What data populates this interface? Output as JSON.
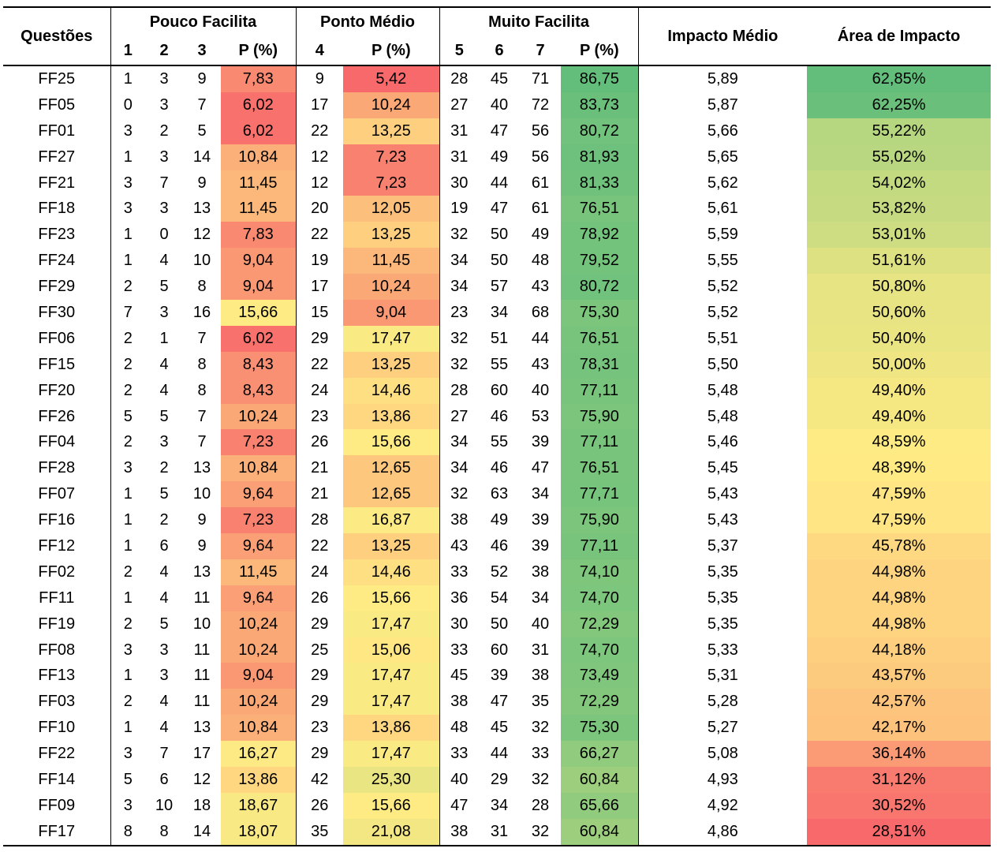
{
  "table": {
    "groups": [
      "Questões",
      "Pouco Facilita",
      "Ponto Médio",
      "Muito Facilita",
      "Impacto Médio",
      "Área de Impacto"
    ],
    "subheaders": [
      "1",
      "2",
      "3",
      "P (%)",
      "4",
      "P (%)",
      "5",
      "6",
      "7",
      "P (%)"
    ],
    "rows": [
      [
        "FF25",
        "1",
        "3",
        "9",
        "7,83",
        "9",
        "5,42",
        "28",
        "45",
        "71",
        "86,75",
        "5,89",
        "62,85%"
      ],
      [
        "FF05",
        "0",
        "3",
        "7",
        "6,02",
        "17",
        "10,24",
        "27",
        "40",
        "72",
        "83,73",
        "5,87",
        "62,25%"
      ],
      [
        "FF01",
        "3",
        "2",
        "5",
        "6,02",
        "22",
        "13,25",
        "31",
        "47",
        "56",
        "80,72",
        "5,66",
        "55,22%"
      ],
      [
        "FF27",
        "1",
        "3",
        "14",
        "10,84",
        "12",
        "7,23",
        "31",
        "49",
        "56",
        "81,93",
        "5,65",
        "55,02%"
      ],
      [
        "FF21",
        "3",
        "7",
        "9",
        "11,45",
        "12",
        "7,23",
        "30",
        "44",
        "61",
        "81,33",
        "5,62",
        "54,02%"
      ],
      [
        "FF18",
        "3",
        "3",
        "13",
        "11,45",
        "20",
        "12,05",
        "19",
        "47",
        "61",
        "76,51",
        "5,61",
        "53,82%"
      ],
      [
        "FF23",
        "1",
        "0",
        "12",
        "7,83",
        "22",
        "13,25",
        "32",
        "50",
        "49",
        "78,92",
        "5,59",
        "53,01%"
      ],
      [
        "FF24",
        "1",
        "4",
        "10",
        "9,04",
        "19",
        "11,45",
        "34",
        "50",
        "48",
        "79,52",
        "5,55",
        "51,61%"
      ],
      [
        "FF29",
        "2",
        "5",
        "8",
        "9,04",
        "17",
        "10,24",
        "34",
        "57",
        "43",
        "80,72",
        "5,52",
        "50,80%"
      ],
      [
        "FF30",
        "7",
        "3",
        "16",
        "15,66",
        "15",
        "9,04",
        "23",
        "34",
        "68",
        "75,30",
        "5,52",
        "50,60%"
      ],
      [
        "FF06",
        "2",
        "1",
        "7",
        "6,02",
        "29",
        "17,47",
        "32",
        "51",
        "44",
        "76,51",
        "5,51",
        "50,40%"
      ],
      [
        "FF15",
        "2",
        "4",
        "8",
        "8,43",
        "22",
        "13,25",
        "32",
        "55",
        "43",
        "78,31",
        "5,50",
        "50,00%"
      ],
      [
        "FF20",
        "2",
        "4",
        "8",
        "8,43",
        "24",
        "14,46",
        "28",
        "60",
        "40",
        "77,11",
        "5,48",
        "49,40%"
      ],
      [
        "FF26",
        "5",
        "5",
        "7",
        "10,24",
        "23",
        "13,86",
        "27",
        "46",
        "53",
        "75,90",
        "5,48",
        "49,40%"
      ],
      [
        "FF04",
        "2",
        "3",
        "7",
        "7,23",
        "26",
        "15,66",
        "34",
        "55",
        "39",
        "77,11",
        "5,46",
        "48,59%"
      ],
      [
        "FF28",
        "3",
        "2",
        "13",
        "10,84",
        "21",
        "12,65",
        "34",
        "46",
        "47",
        "76,51",
        "5,45",
        "48,39%"
      ],
      [
        "FF07",
        "1",
        "5",
        "10",
        "9,64",
        "21",
        "12,65",
        "32",
        "63",
        "34",
        "77,71",
        "5,43",
        "47,59%"
      ],
      [
        "FF16",
        "1",
        "2",
        "9",
        "7,23",
        "28",
        "16,87",
        "38",
        "49",
        "39",
        "75,90",
        "5,43",
        "47,59%"
      ],
      [
        "FF12",
        "1",
        "6",
        "9",
        "9,64",
        "22",
        "13,25",
        "43",
        "46",
        "39",
        "77,11",
        "5,37",
        "45,78%"
      ],
      [
        "FF02",
        "2",
        "4",
        "13",
        "11,45",
        "24",
        "14,46",
        "33",
        "52",
        "38",
        "74,10",
        "5,35",
        "44,98%"
      ],
      [
        "FF11",
        "1",
        "4",
        "11",
        "9,64",
        "26",
        "15,66",
        "36",
        "54",
        "34",
        "74,70",
        "5,35",
        "44,98%"
      ],
      [
        "FF19",
        "2",
        "5",
        "10",
        "10,24",
        "29",
        "17,47",
        "30",
        "50",
        "40",
        "72,29",
        "5,35",
        "44,98%"
      ],
      [
        "FF08",
        "3",
        "3",
        "11",
        "10,24",
        "25",
        "15,06",
        "33",
        "60",
        "31",
        "74,70",
        "5,33",
        "44,18%"
      ],
      [
        "FF13",
        "1",
        "3",
        "11",
        "9,04",
        "29",
        "17,47",
        "45",
        "39",
        "38",
        "73,49",
        "5,31",
        "43,57%"
      ],
      [
        "FF03",
        "2",
        "4",
        "11",
        "10,24",
        "29",
        "17,47",
        "38",
        "47",
        "35",
        "72,29",
        "5,28",
        "42,57%"
      ],
      [
        "FF10",
        "1",
        "4",
        "13",
        "10,84",
        "23",
        "13,86",
        "48",
        "45",
        "32",
        "75,30",
        "5,27",
        "42,17%"
      ],
      [
        "FF22",
        "3",
        "7",
        "17",
        "16,27",
        "29",
        "17,47",
        "33",
        "44",
        "33",
        "66,27",
        "5,08",
        "36,14%"
      ],
      [
        "FF14",
        "5",
        "6",
        "12",
        "13,86",
        "42",
        "25,30",
        "40",
        "29",
        "32",
        "60,84",
        "4,93",
        "31,12%"
      ],
      [
        "FF09",
        "3",
        "10",
        "18",
        "18,67",
        "26",
        "15,66",
        "47",
        "34",
        "28",
        "65,66",
        "4,92",
        "30,52%"
      ],
      [
        "FF17",
        "8",
        "8",
        "14",
        "18,07",
        "35",
        "21,08",
        "38",
        "31",
        "32",
        "60,84",
        "4,86",
        "28,51%"
      ]
    ]
  }
}
